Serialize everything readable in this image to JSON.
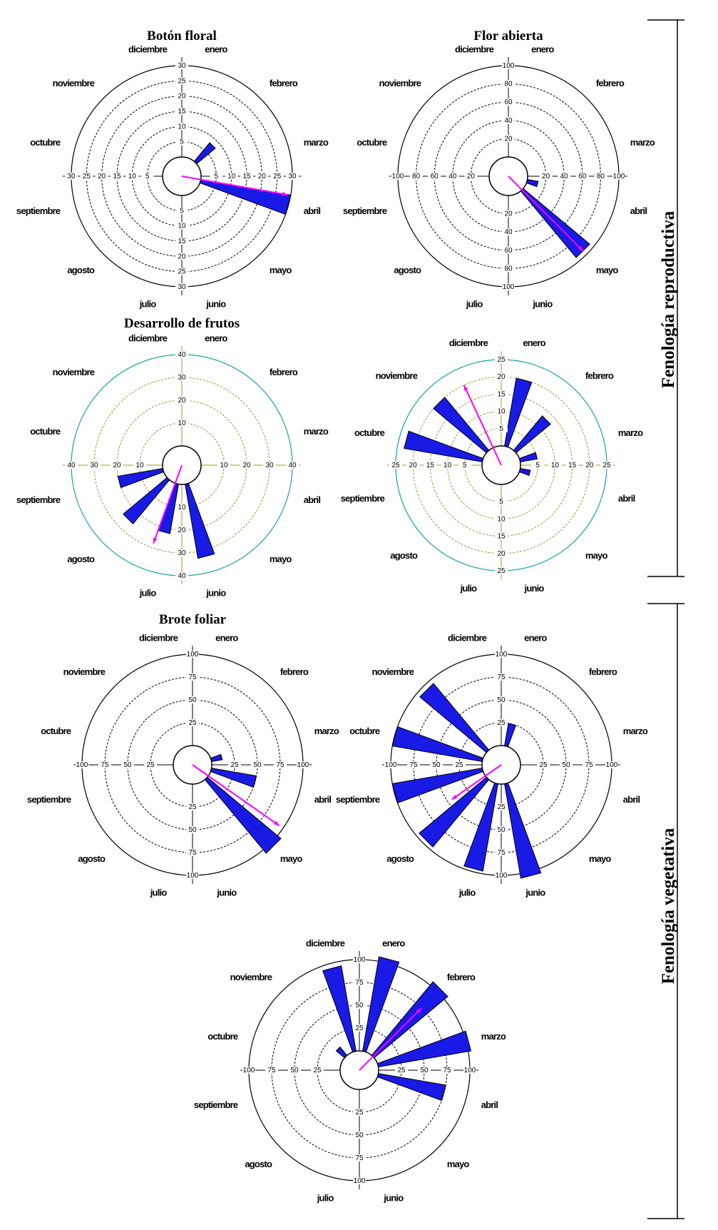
{
  "months": [
    "enero",
    "febrero",
    "marzo",
    "abril",
    "mayo",
    "junio",
    "julio",
    "agosto",
    "septiembre",
    "octubre",
    "noviembre",
    "diciembre"
  ],
  "sections": {
    "reproductive": "Fenología reproductiva",
    "vegetative": "Fenología vegetativa"
  },
  "colors": {
    "bar": "#1a1ae6",
    "arrow": "#ff00ff",
    "grid": "#000000",
    "alt_grid": "#999933",
    "alt_ring": "#1aa0b4"
  },
  "chart_data": [
    {
      "id": "boton-floral",
      "type": "rose",
      "title": "Botón floral",
      "max": 30,
      "ticks": [
        5,
        10,
        15,
        20,
        25,
        30
      ],
      "tick_labels": [
        "5",
        "10",
        "15",
        "20",
        "25",
        "30"
      ],
      "values": [
        0,
        8,
        0,
        30,
        0,
        0,
        0,
        0,
        0,
        0,
        0,
        0
      ],
      "mean_vector": {
        "angle_deg": 100,
        "length": 29
      },
      "style": "default"
    },
    {
      "id": "flor-abierta",
      "type": "rose",
      "title": "Flor abierta",
      "max": 100,
      "ticks": [
        20,
        40,
        60,
        80,
        100
      ],
      "tick_labels": [
        "20",
        "40",
        "60",
        "80",
        "100"
      ],
      "values": [
        0,
        0,
        0,
        12,
        95,
        0,
        0,
        0,
        0,
        0,
        0,
        0
      ],
      "mean_vector": {
        "angle_deg": 135,
        "length": 95
      },
      "style": "default"
    },
    {
      "id": "desarrollo-frutos",
      "type": "rose",
      "title": "Desarrollo de frutos",
      "max": 40,
      "ticks": [
        10,
        20,
        30,
        40
      ],
      "tick_labels": [
        "10",
        "20",
        "30",
        "40"
      ],
      "values": [
        0,
        0,
        0,
        0,
        0,
        33,
        22,
        25,
        20,
        0,
        0,
        0
      ],
      "mean_vector": {
        "angle_deg": 200,
        "length": 28
      },
      "style": "teal"
    },
    {
      "id": "desarrollo-frutos-2",
      "type": "rose",
      "title": "",
      "max": 25,
      "ticks": [
        5,
        10,
        15,
        20,
        25
      ],
      "tick_labels": [
        "5",
        "10",
        "15",
        "20",
        "25"
      ],
      "values": [
        20,
        13,
        5,
        3,
        0,
        0,
        0,
        0,
        0,
        23,
        20,
        0
      ],
      "mean_vector": {
        "angle_deg": 335,
        "length": 20
      },
      "style": "teal"
    },
    {
      "id": "brote-foliar",
      "type": "rose",
      "title": "Brote foliar",
      "max": 100,
      "ticks": [
        25,
        50,
        75,
        100
      ],
      "tick_labels": [
        "25",
        "50",
        "75",
        "100"
      ],
      "values": [
        0,
        0,
        12,
        50,
        105,
        0,
        0,
        0,
        0,
        0,
        0,
        0
      ],
      "mean_vector": {
        "angle_deg": 125,
        "length": 95
      },
      "style": "default"
    },
    {
      "id": "brote-foliar-2",
      "type": "rose",
      "title": "",
      "max": 100,
      "ticks": [
        25,
        50,
        75,
        100
      ],
      "tick_labels": [
        "25",
        "50",
        "75",
        "100"
      ],
      "values": [
        25,
        0,
        0,
        0,
        0,
        105,
        97,
        96,
        100,
        100,
        95,
        0
      ],
      "mean_vector": {
        "angle_deg": 235,
        "length": 45
      },
      "style": "default"
    },
    {
      "id": "brote-foliar-3",
      "type": "rose",
      "title": "",
      "max": 100,
      "ticks": [
        25,
        50,
        75,
        100
      ],
      "tick_labels": [
        "25",
        "50",
        "75",
        "100"
      ],
      "values": [
        105,
        105,
        103,
        75,
        0,
        0,
        0,
        0,
        0,
        0,
        12,
        95
      ],
      "mean_vector": {
        "angle_deg": 45,
        "length": 75
      },
      "style": "default"
    }
  ]
}
